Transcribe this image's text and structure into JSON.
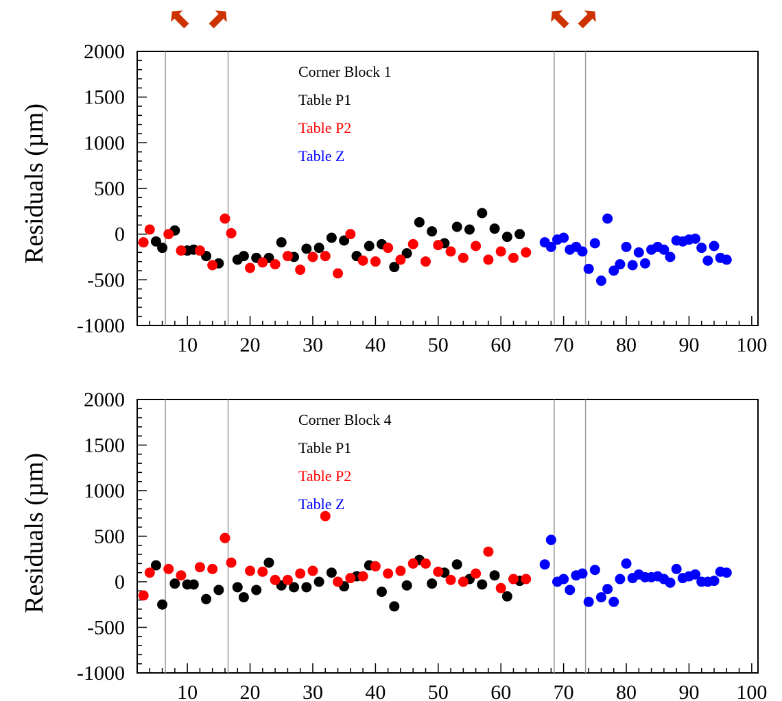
{
  "colors": {
    "black": "#000000",
    "red": "#ff0000",
    "blue": "#0000ff",
    "arrow": "#cc3300"
  },
  "markers": {
    "arrow_icon_name": "orange-diagonal-arrow-icon"
  },
  "chart_data": [
    {
      "type": "scatter",
      "title": "",
      "xlabel": "",
      "ylabel": "Residuals (µm)",
      "xlim": [
        2,
        101
      ],
      "ylim": [
        -1000,
        2000
      ],
      "x_ticks": [
        10,
        20,
        30,
        40,
        50,
        60,
        70,
        80,
        90,
        100
      ],
      "x_tick_labels": [
        "10",
        "20",
        "30",
        "40",
        "50",
        "60",
        "70",
        "80",
        "90",
        "100"
      ],
      "y_ticks": [
        -1000,
        -500,
        0,
        500,
        1000,
        1500,
        2000
      ],
      "y_tick_labels": [
        "-1000",
        "-500",
        "0",
        "500",
        "1000",
        "1500",
        "2000"
      ],
      "vlines": [
        6.5,
        16.5,
        68.5,
        73.5
      ],
      "legend": {
        "heading": "Corner Block 1",
        "entries": [
          {
            "label": "Table P1",
            "color": "#000000"
          },
          {
            "label": "Table P2",
            "color": "#ff0000"
          },
          {
            "label": "Table Z",
            "color": "#0000ff"
          }
        ]
      },
      "series": [
        {
          "name": "Table P1",
          "color": "#000000",
          "x": [
            5,
            6,
            8,
            10,
            11,
            13,
            15,
            18,
            19,
            21,
            23,
            25,
            27,
            29,
            31,
            33,
            35,
            37,
            39,
            41,
            43,
            45,
            47,
            49,
            51,
            53,
            55,
            57,
            59,
            61,
            63
          ],
          "y": [
            -80,
            -150,
            40,
            -180,
            -170,
            -240,
            -320,
            -280,
            -240,
            -260,
            -260,
            -90,
            -250,
            -160,
            -150,
            -40,
            -70,
            -240,
            -130,
            -110,
            -360,
            -210,
            130,
            30,
            -100,
            80,
            50,
            230,
            60,
            -30,
            0
          ]
        },
        {
          "name": "Table P2",
          "color": "#ff0000",
          "x": [
            3,
            4,
            7,
            9,
            12,
            14,
            16,
            17,
            20,
            22,
            24,
            26,
            28,
            30,
            32,
            34,
            36,
            38,
            40,
            42,
            44,
            46,
            48,
            50,
            52,
            54,
            56,
            58,
            60,
            62,
            64
          ],
          "y": [
            -90,
            50,
            0,
            -180,
            -180,
            -340,
            170,
            10,
            -370,
            -310,
            -330,
            -240,
            -390,
            -250,
            -240,
            -430,
            0,
            -290,
            -300,
            -150,
            -280,
            -110,
            -300,
            -120,
            -190,
            -260,
            -130,
            -280,
            -190,
            -260,
            -200
          ]
        },
        {
          "name": "Table Z",
          "color": "#0000ff",
          "x": [
            67,
            68,
            69,
            70,
            71,
            72,
            73,
            74,
            75,
            76,
            77,
            78,
            79,
            80,
            81,
            82,
            83,
            84,
            85,
            86,
            87,
            88,
            89,
            90,
            91,
            92,
            93,
            94,
            95,
            96
          ],
          "y": [
            -90,
            -140,
            -60,
            -40,
            -170,
            -140,
            -190,
            -380,
            -100,
            -510,
            170,
            -400,
            -330,
            -140,
            -340,
            -200,
            -320,
            -170,
            -140,
            -170,
            -250,
            -70,
            -80,
            -60,
            -50,
            -150,
            -290,
            -130,
            -260,
            -280
          ]
        }
      ]
    },
    {
      "type": "scatter",
      "title": "",
      "xlabel": "",
      "ylabel": "Residuals (µm)",
      "xlim": [
        2,
        101
      ],
      "ylim": [
        -1000,
        2000
      ],
      "x_ticks": [
        10,
        20,
        30,
        40,
        50,
        60,
        70,
        80,
        90,
        100
      ],
      "x_tick_labels": [
        "10",
        "20",
        "30",
        "40",
        "50",
        "60",
        "70",
        "80",
        "90",
        "100"
      ],
      "y_ticks": [
        -1000,
        -500,
        0,
        500,
        1000,
        1500,
        2000
      ],
      "y_tick_labels": [
        "-1000",
        "-500",
        "0",
        "500",
        "1000",
        "1500",
        "2000"
      ],
      "vlines": [
        6.5,
        16.5,
        68.5,
        73.5
      ],
      "legend": {
        "heading": "Corner Block 4",
        "entries": [
          {
            "label": "Table P1",
            "color": "#000000"
          },
          {
            "label": "Table P2",
            "color": "#ff0000"
          },
          {
            "label": "Table Z",
            "color": "#0000ff"
          }
        ]
      },
      "series": [
        {
          "name": "Table P1",
          "color": "#000000",
          "x": [
            5,
            6,
            8,
            10,
            11,
            13,
            15,
            18,
            19,
            21,
            23,
            25,
            27,
            29,
            31,
            33,
            35,
            37,
            39,
            41,
            43,
            45,
            47,
            49,
            51,
            53,
            55,
            57,
            59,
            61,
            63
          ],
          "y": [
            180,
            -250,
            -20,
            -30,
            -30,
            -190,
            -90,
            -60,
            -170,
            -90,
            210,
            -40,
            -60,
            -60,
            0,
            100,
            -50,
            60,
            180,
            -110,
            -270,
            -40,
            240,
            -20,
            100,
            190,
            30,
            -30,
            70,
            -160,
            10
          ]
        },
        {
          "name": "Table P2",
          "color": "#ff0000",
          "x": [
            3,
            4,
            7,
            9,
            12,
            14,
            16,
            17,
            20,
            22,
            24,
            26,
            28,
            30,
            32,
            34,
            36,
            38,
            40,
            42,
            44,
            46,
            48,
            50,
            52,
            54,
            56,
            58,
            60,
            62,
            64
          ],
          "y": [
            -150,
            100,
            140,
            70,
            160,
            140,
            480,
            210,
            120,
            110,
            20,
            20,
            90,
            120,
            720,
            0,
            40,
            60,
            170,
            90,
            120,
            200,
            200,
            110,
            20,
            0,
            90,
            330,
            -70,
            30,
            30
          ]
        },
        {
          "name": "Table Z",
          "color": "#0000ff",
          "x": [
            67,
            68,
            69,
            70,
            71,
            72,
            73,
            74,
            75,
            76,
            77,
            78,
            79,
            80,
            81,
            82,
            83,
            84,
            85,
            86,
            87,
            88,
            89,
            90,
            91,
            92,
            93,
            94,
            95,
            96
          ],
          "y": [
            190,
            460,
            0,
            30,
            -90,
            70,
            90,
            -220,
            130,
            -170,
            -80,
            -220,
            30,
            200,
            40,
            80,
            50,
            50,
            60,
            30,
            -10,
            140,
            40,
            60,
            80,
            0,
            0,
            10,
            110,
            100
          ]
        }
      ]
    }
  ]
}
